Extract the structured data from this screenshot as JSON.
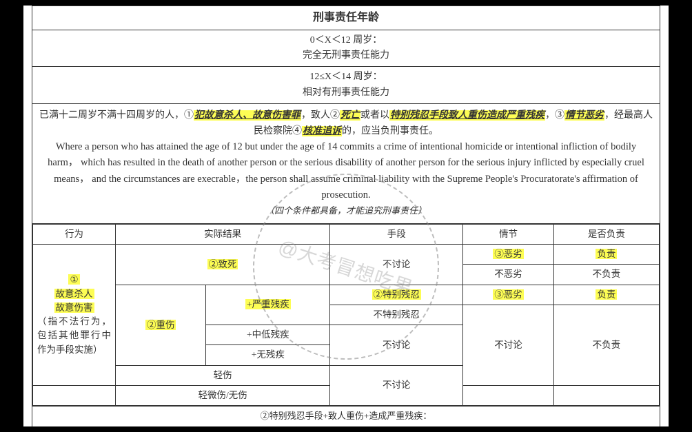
{
  "colors": {
    "highlight": "#fdfd54",
    "border": "#333333",
    "bg": "#ffffff",
    "outer_bg": "#000000",
    "watermark": "#888888"
  },
  "title": "刑事责任年龄",
  "tiers": [
    {
      "range": "0＜X＜12 周岁：",
      "desc": "完全无刑事责任能力"
    },
    {
      "range": "12≤X＜14 周岁：",
      "desc": "相对有刑事责任能力"
    }
  ],
  "para_cn": {
    "pre": "已满十二周岁不满十四周岁的人，①",
    "h1": "犯故意杀人、故意伤害罪",
    "mid1": "，致人②",
    "h2": "死亡",
    "mid2": "或者以",
    "h3": "特别残忍手段致人重伤造成严重残疾",
    "mid3": "，③",
    "h4": "情节恶劣",
    "mid4": "，经最高人民检察院④",
    "h5": "核准追诉",
    "post": "的，应当负刑事责任。"
  },
  "para_en": "Where a person who has attained the age of 12 but under the age of 14 commits a crime of intentional homicide or intentional infliction of bodily harm，  which has resulted in the death of another person or the serious disability of another person for the serious injury inflicted by especially cruel means， and the circumstances are execrable，the person shall assume criminal liability with the Supreme People's Procuratorate's affirmation of prosecution.",
  "note": "（四个条件都具备，才能追究刑事责任）",
  "headers": {
    "c1": "行为",
    "c2": "实际结果",
    "c3": "手段",
    "c4": "情节",
    "c5": "是否负责"
  },
  "col1": {
    "num": "①",
    "l1": "故意杀人",
    "l2": "故意伤害",
    "l3": "（指不法行为，包括其他罪行中作为手段实施）"
  },
  "results": {
    "death": "②致死",
    "serious": "②重伤",
    "sev_dis": "+严重残疾",
    "mid_dis": "+中低残疾",
    "no_dis": "+无残疾",
    "light": "轻伤",
    "minor": "轻微伤/无伤"
  },
  "means": {
    "na": "不讨论",
    "cruel": "②特别残忍",
    "not_cruel": "不特别残忍"
  },
  "circ": {
    "bad": "③恶劣",
    "not_bad": "不恶劣",
    "na": "不讨论"
  },
  "resp": {
    "yes": "负责",
    "no": "不负责"
  },
  "footer": "②特别残忍手段+致人重伤+造成严重残疾：",
  "watermark": "@大考冒想吃果"
}
